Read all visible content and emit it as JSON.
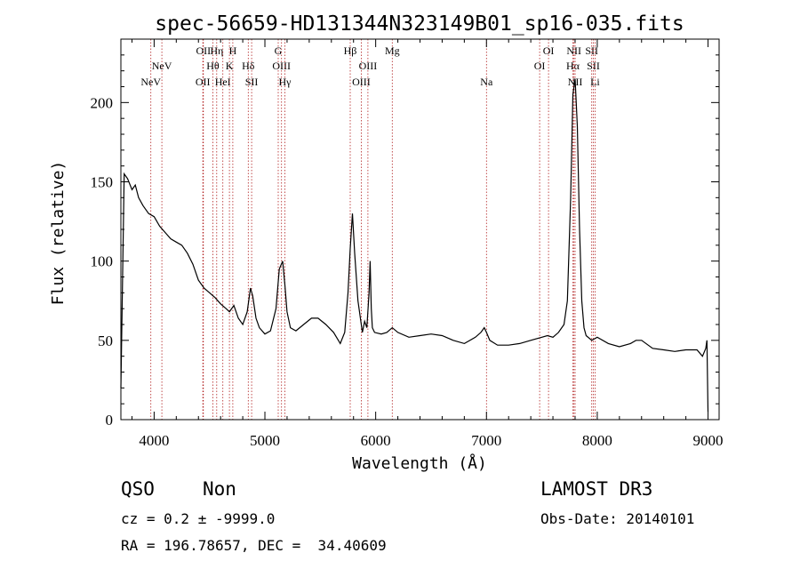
{
  "chart_data": {
    "type": "line",
    "title": "spec-56659-HD131344N323149B01_sp16-035.fits",
    "xlabel": "Wavelength (Å)",
    "ylabel": "Flux (relative)",
    "xlim": [
      3700,
      9100
    ],
    "ylim": [
      0,
      240
    ],
    "xticks": [
      4000,
      5000,
      6000,
      7000,
      8000,
      9000
    ],
    "yticks": [
      0,
      50,
      100,
      150,
      200
    ],
    "line_color": "#000000",
    "marker_color": "#b22222",
    "series": [
      {
        "name": "flux",
        "x": [
          3700,
          3730,
          3760,
          3800,
          3830,
          3860,
          3900,
          3950,
          4000,
          4050,
          4100,
          4150,
          4200,
          4250,
          4300,
          4350,
          4400,
          4450,
          4500,
          4550,
          4600,
          4650,
          4680,
          4720,
          4760,
          4800,
          4840,
          4870,
          4890,
          4920,
          4950,
          5000,
          5050,
          5100,
          5130,
          5160,
          5180,
          5200,
          5230,
          5280,
          5350,
          5420,
          5480,
          5550,
          5620,
          5680,
          5720,
          5750,
          5770,
          5790,
          5810,
          5840,
          5880,
          5900,
          5920,
          5940,
          5950,
          5960,
          5970,
          5990,
          6050,
          6100,
          6150,
          6200,
          6300,
          6400,
          6500,
          6600,
          6700,
          6800,
          6900,
          6950,
          6980,
          7000,
          7030,
          7100,
          7200,
          7300,
          7400,
          7500,
          7550,
          7600,
          7650,
          7700,
          7730,
          7760,
          7780,
          7800,
          7820,
          7840,
          7860,
          7880,
          7900,
          7950,
          8000,
          8100,
          8200,
          8300,
          8350,
          8400,
          8500,
          8600,
          8700,
          8800,
          8900,
          8950,
          8980,
          8990,
          9000
        ],
        "values": [
          20,
          155,
          152,
          145,
          148,
          140,
          135,
          130,
          128,
          122,
          118,
          114,
          112,
          110,
          105,
          98,
          88,
          83,
          80,
          77,
          73,
          70,
          68,
          72,
          64,
          60,
          68,
          83,
          78,
          64,
          58,
          54,
          56,
          70,
          95,
          100,
          85,
          68,
          58,
          56,
          60,
          64,
          64,
          60,
          55,
          48,
          55,
          80,
          108,
          130,
          105,
          75,
          55,
          62,
          58,
          80,
          100,
          70,
          58,
          55,
          54,
          55,
          58,
          55,
          52,
          53,
          54,
          53,
          50,
          48,
          52,
          55,
          58,
          55,
          50,
          47,
          47,
          48,
          50,
          52,
          53,
          52,
          55,
          60,
          75,
          140,
          205,
          215,
          185,
          120,
          75,
          58,
          53,
          50,
          52,
          48,
          46,
          48,
          50,
          50,
          45,
          44,
          43,
          44,
          44,
          40,
          45,
          50,
          5
        ]
      }
    ],
    "line_markers": [
      {
        "wavelength": 3970,
        "label": "NeV",
        "row": 3
      },
      {
        "wavelength": 4070,
        "label": "NeV",
        "row": 2
      },
      {
        "wavelength": 4440,
        "label": "OII",
        "row": 3
      },
      {
        "wavelength": 4445,
        "label": "OII",
        "row": 1
      },
      {
        "wavelength": 4530,
        "label": "Hθ",
        "row": 2
      },
      {
        "wavelength": 4565,
        "label": "Hη",
        "row": 1
      },
      {
        "wavelength": 4620,
        "label": "HeI",
        "row": 3
      },
      {
        "wavelength": 4680,
        "label": "K",
        "row": 2
      },
      {
        "wavelength": 4710,
        "label": "H",
        "row": 1
      },
      {
        "wavelength": 4850,
        "label": "Hδ",
        "row": 2
      },
      {
        "wavelength": 4880,
        "label": "SII",
        "row": 3
      },
      {
        "wavelength": 5120,
        "label": "G",
        "row": 1
      },
      {
        "wavelength": 5150,
        "label": "OIII",
        "row": 2
      },
      {
        "wavelength": 5180,
        "label": "Hγ",
        "row": 3
      },
      {
        "wavelength": 5770,
        "label": "Hβ",
        "row": 1
      },
      {
        "wavelength": 5870,
        "label": "OIII",
        "row": 3
      },
      {
        "wavelength": 5930,
        "label": "OIII",
        "row": 2
      },
      {
        "wavelength": 6150,
        "label": "Mg",
        "row": 1
      },
      {
        "wavelength": 7000,
        "label": "Na",
        "row": 3
      },
      {
        "wavelength": 7480,
        "label": "OI",
        "row": 2
      },
      {
        "wavelength": 7560,
        "label": "OI",
        "row": 1
      },
      {
        "wavelength": 7780,
        "label": "Hα",
        "row": 2
      },
      {
        "wavelength": 7790,
        "label": "NII",
        "row": 1
      },
      {
        "wavelength": 7800,
        "label": "NII",
        "row": 3
      },
      {
        "wavelength": 7950,
        "label": "SII",
        "row": 1
      },
      {
        "wavelength": 7965,
        "label": "SII",
        "row": 2
      },
      {
        "wavelength": 7980,
        "label": "Li",
        "row": 3
      }
    ]
  },
  "info": {
    "class_label": "QSO",
    "subclass_label": "Non",
    "cz_line": "cz = 0.2 ± -9999.0",
    "coords_line": "RA = 196.78657, DEC =  34.40609",
    "survey": "LAMOST DR3",
    "obs_date": "Obs-Date: 20140101"
  }
}
